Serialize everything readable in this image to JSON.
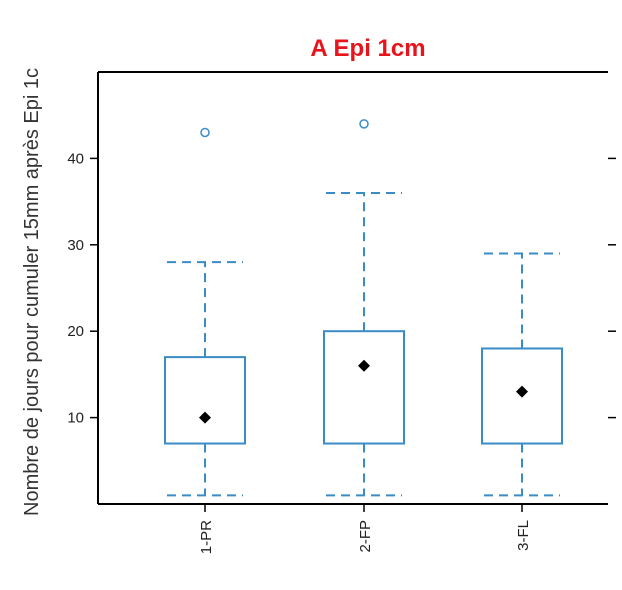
{
  "chart_data": {
    "type": "box",
    "title": "A Epi 1cm",
    "ylabel": "Nombre de jours pour cumuler 15mm après Epi 1c",
    "xlabel": "",
    "ylim": [
      0,
      50
    ],
    "yticks": [
      10,
      20,
      30,
      40
    ],
    "categories": [
      "1-PR",
      "2-FP",
      "3-FL"
    ],
    "boxes": [
      {
        "category": "1-PR",
        "whisker_low": 1,
        "q1": 7,
        "q3": 17,
        "whisker_high": 28,
        "mean": 10,
        "outliers": [
          43
        ]
      },
      {
        "category": "2-FP",
        "whisker_low": 1,
        "q1": 7,
        "q3": 20,
        "whisker_high": 36,
        "mean": 16,
        "outliers": [
          44
        ]
      },
      {
        "category": "3-FL",
        "whisker_low": 1,
        "q1": 7,
        "q3": 18,
        "whisker_high": 29,
        "mean": 13,
        "outliers": []
      }
    ],
    "colors": {
      "box": "#3a8cc6",
      "mean": "#000000",
      "title": "#e8141b",
      "axis": "#000000"
    }
  }
}
